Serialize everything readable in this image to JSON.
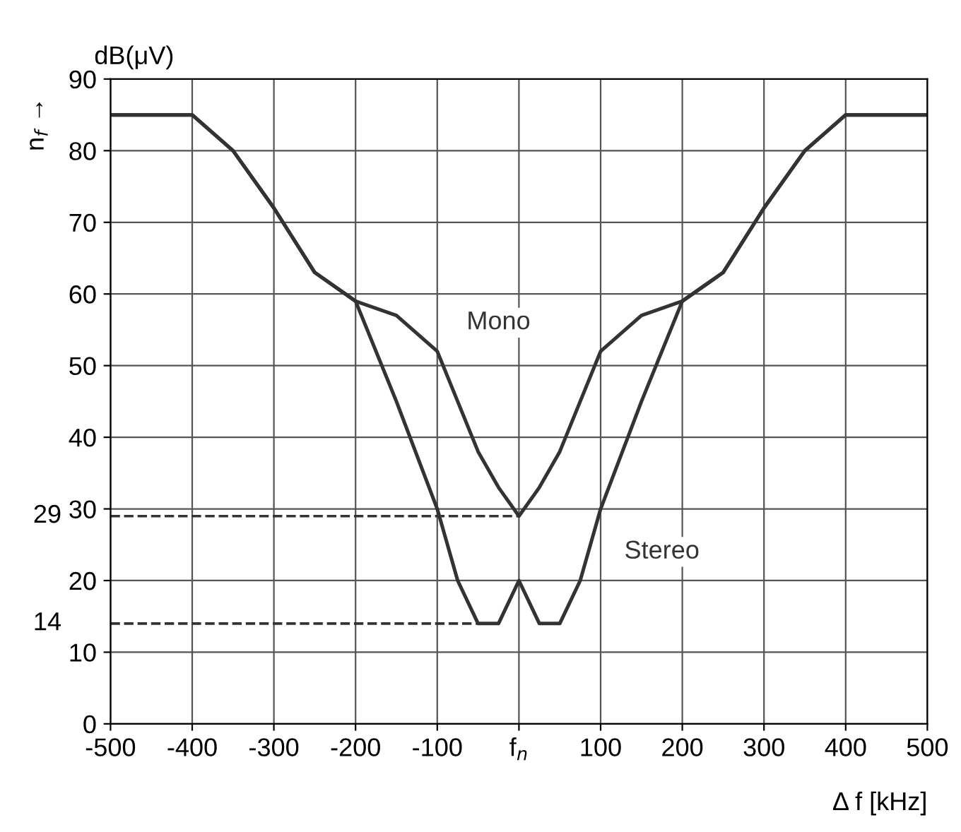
{
  "chart_data": {
    "type": "line",
    "ylabel": "dB(μV)",
    "xlabel": "Δ f [kHz]",
    "annotations": [
      "n$_{f}$ →"
    ],
    "xlim": [
      -500,
      500
    ],
    "ylim": [
      0,
      90
    ],
    "xticks": [
      -500,
      -400,
      -300,
      -200,
      -100,
      {
        "value": 0,
        "label": "f$_{n}$"
      },
      100,
      200,
      300,
      400,
      500
    ],
    "yticks": [
      0,
      10,
      20,
      30,
      40,
      50,
      60,
      70,
      80,
      90
    ],
    "grid": true,
    "marker": "none",
    "line_style": "solid",
    "ref_lines": [
      {
        "axis": "y",
        "value": 29,
        "label": "29",
        "line_style": "dashed",
        "color": "#333333"
      },
      {
        "axis": "y",
        "value": 14,
        "label": "14",
        "line_style": "dashed",
        "color": "#333333"
      }
    ],
    "series": [
      {
        "name": "Mono",
        "color": "#333333",
        "x": [
          -500,
          -400,
          -350,
          -300,
          -250,
          -200,
          -150,
          -100,
          -75,
          -50,
          -25,
          0,
          25,
          50,
          75,
          100,
          150,
          200,
          250,
          300,
          350,
          400,
          500
        ],
        "values": [
          85,
          85,
          80,
          72,
          63,
          59,
          57,
          52,
          45,
          38,
          33,
          29,
          33,
          38,
          45,
          52,
          57,
          59,
          63,
          72,
          80,
          85,
          85
        ]
      },
      {
        "name": "Stereo",
        "color": "#333333",
        "x": [
          -500,
          -400,
          -350,
          -300,
          -250,
          -200,
          -150,
          -100,
          -75,
          -50,
          -25,
          0,
          25,
          50,
          75,
          100,
          150,
          200,
          250,
          300,
          350,
          400,
          500
        ],
        "values": [
          85,
          85,
          80,
          72,
          63,
          59,
          45,
          30,
          20,
          14,
          14,
          20,
          14,
          14,
          20,
          30,
          45,
          59,
          63,
          72,
          80,
          85,
          85
        ]
      }
    ]
  }
}
